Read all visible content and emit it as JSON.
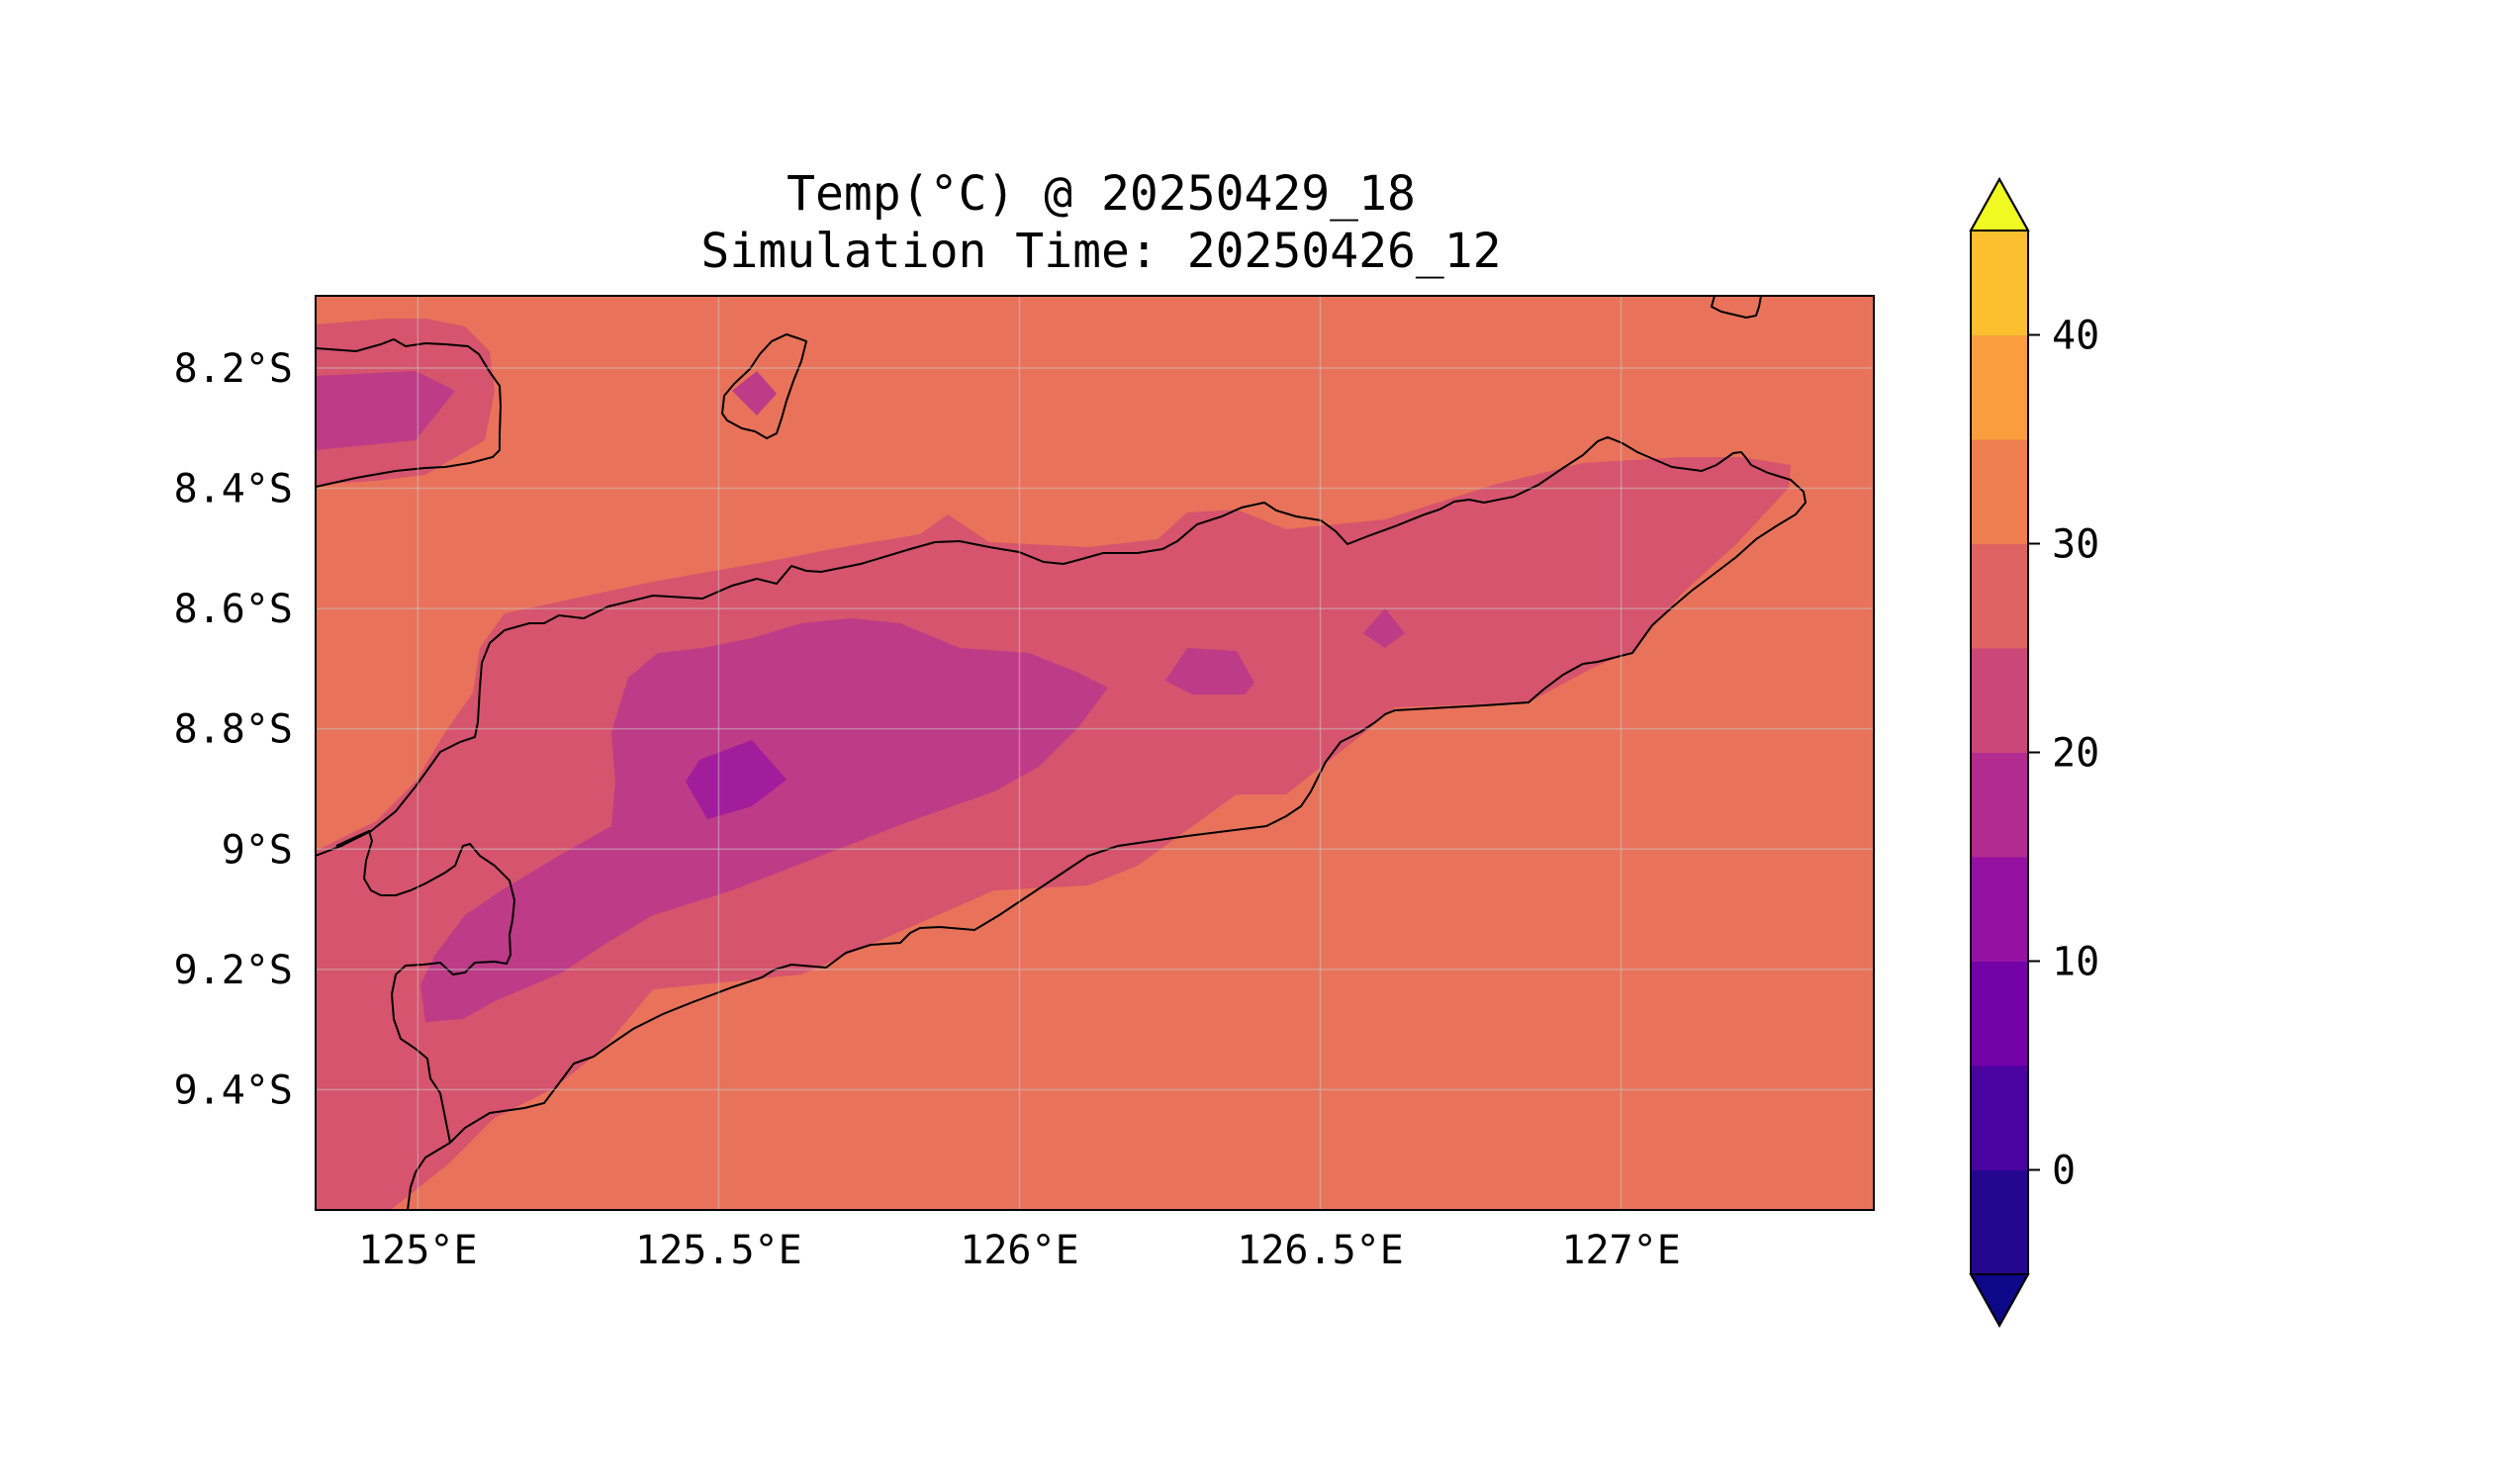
{
  "title": {
    "line1": "Temp(°C) @ 20250429_18",
    "line2": "Simulation Time: 20250426_12"
  },
  "map": {
    "extent_lon": [
      124.83,
      127.42
    ],
    "extent_lat": [
      -9.6,
      -8.08
    ],
    "x_ticks": [
      {
        "lon": 125.0,
        "label": "125°E"
      },
      {
        "lon": 125.5,
        "label": "125.5°E"
      },
      {
        "lon": 126.0,
        "label": "126°E"
      },
      {
        "lon": 126.5,
        "label": "126.5°E"
      },
      {
        "lon": 127.0,
        "label": "127°E"
      }
    ],
    "y_ticks": [
      {
        "lat": -8.2,
        "label": "8.2°S"
      },
      {
        "lat": -8.4,
        "label": "8.4°S"
      },
      {
        "lat": -8.6,
        "label": "8.6°S"
      },
      {
        "lat": -8.8,
        "label": "8.8°S"
      },
      {
        "lat": -9.0,
        "label": "9°S"
      },
      {
        "lat": -9.2,
        "label": "9.2°S"
      },
      {
        "lat": -9.4,
        "label": "9.4°S"
      }
    ],
    "ocean_value_range": "25–30 °C",
    "colors": {
      "sea": "#e8735a",
      "band_20_25": "#d6546d",
      "band_15_20": "#bd3b87",
      "band_10_15": "#a21d9c",
      "coastline": "#000000",
      "grid": "#c8c8c8"
    }
  },
  "colorbar": {
    "levels": [
      -5,
      0,
      5,
      10,
      15,
      20,
      25,
      30,
      35,
      40,
      45
    ],
    "colors": [
      "#24068f",
      "#4a02a0",
      "#7201a8",
      "#9511a1",
      "#b22b8f",
      "#cb4679",
      "#e06363",
      "#ef7e50",
      "#f99d3e",
      "#fbbf2f",
      "#f2e227"
    ],
    "under_color": "#0d0887",
    "over_color": "#f0f921",
    "ticks": [
      {
        "value": 0,
        "label": "0"
      },
      {
        "value": 10,
        "label": "10"
      },
      {
        "value": 20,
        "label": "20"
      },
      {
        "value": 30,
        "label": "30"
      },
      {
        "value": 40,
        "label": "40"
      }
    ]
  }
}
